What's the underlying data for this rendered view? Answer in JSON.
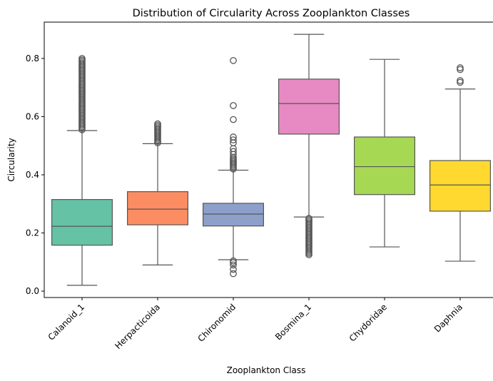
{
  "chart_data": {
    "type": "box",
    "title": "Distribution of Circularity Across Zooplankton Classes",
    "xlabel": "Zooplankton Class",
    "ylabel": "Circularity",
    "ylim": [
      -0.022,
      0.925
    ],
    "yticks": [
      0.0,
      0.2,
      0.4,
      0.6,
      0.8
    ],
    "ytick_labels": [
      "0.0",
      "0.2",
      "0.4",
      "0.6",
      "0.8"
    ],
    "grid": false,
    "categories": [
      "Calanoid_1",
      "Herpacticoida",
      "Chironomid",
      "Bosmina_1",
      "Chydoridae",
      "Daphnia"
    ],
    "colors": [
      "#66c2a5",
      "#fc8d62",
      "#8da0cb",
      "#e78ac3",
      "#a6d854",
      "#ffd92f"
    ],
    "boxes": [
      {
        "whislo": 0.02,
        "q1": 0.158,
        "med": 0.223,
        "q3": 0.315,
        "whishi": 0.552,
        "fliers_low": [],
        "fliers_high": [
          0.555,
          0.56,
          0.565,
          0.57,
          0.575,
          0.58,
          0.585,
          0.59,
          0.595,
          0.6,
          0.605,
          0.61,
          0.615,
          0.62,
          0.625,
          0.63,
          0.635,
          0.64,
          0.645,
          0.65,
          0.655,
          0.66,
          0.665,
          0.67,
          0.675,
          0.68,
          0.685,
          0.69,
          0.695,
          0.7,
          0.705,
          0.71,
          0.715,
          0.72,
          0.725,
          0.73,
          0.735,
          0.74,
          0.745,
          0.75,
          0.755,
          0.76,
          0.765,
          0.77,
          0.775,
          0.78,
          0.785,
          0.79,
          0.795,
          0.8
        ]
      },
      {
        "whislo": 0.09,
        "q1": 0.228,
        "med": 0.282,
        "q3": 0.342,
        "whishi": 0.507,
        "fliers_low": [],
        "fliers_high": [
          0.51,
          0.515,
          0.52,
          0.525,
          0.53,
          0.535,
          0.54,
          0.545,
          0.55,
          0.555,
          0.56,
          0.565,
          0.57,
          0.575
        ]
      },
      {
        "whislo": 0.108,
        "q1": 0.224,
        "med": 0.265,
        "q3": 0.302,
        "whishi": 0.416,
        "fliers_low": [
          0.06,
          0.075,
          0.09,
          0.098,
          0.104
        ],
        "fliers_high": [
          0.42,
          0.425,
          0.43,
          0.435,
          0.44,
          0.445,
          0.45,
          0.455,
          0.46,
          0.47,
          0.48,
          0.49,
          0.51,
          0.52,
          0.53,
          0.59,
          0.638,
          0.793
        ]
      },
      {
        "whislo": 0.255,
        "q1": 0.54,
        "med": 0.645,
        "q3": 0.729,
        "whishi": 0.883,
        "fliers_low": [
          0.125,
          0.13,
          0.135,
          0.14,
          0.145,
          0.15,
          0.155,
          0.16,
          0.165,
          0.17,
          0.175,
          0.18,
          0.185,
          0.19,
          0.195,
          0.2,
          0.205,
          0.21,
          0.215,
          0.22,
          0.225,
          0.23,
          0.235,
          0.24,
          0.245,
          0.25
        ],
        "fliers_high": []
      },
      {
        "whislo": 0.152,
        "q1": 0.332,
        "med": 0.428,
        "q3": 0.53,
        "whishi": 0.797,
        "fliers_low": [],
        "fliers_high": []
      },
      {
        "whislo": 0.103,
        "q1": 0.275,
        "med": 0.365,
        "q3": 0.449,
        "whishi": 0.695,
        "fliers_low": [],
        "fliers_high": [
          0.718,
          0.724,
          0.762,
          0.768
        ]
      }
    ]
  }
}
